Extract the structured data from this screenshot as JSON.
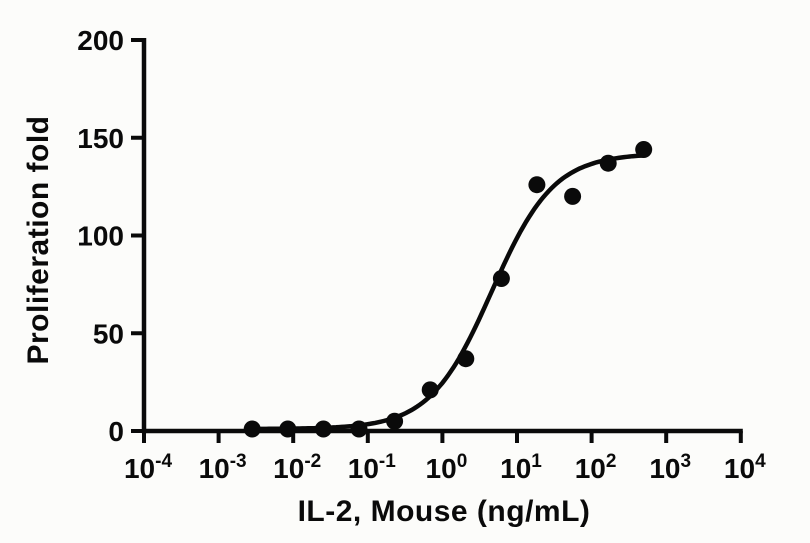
{
  "chart_data": {
    "type": "scatter",
    "title": "",
    "xlabel": "IL-2, Mouse (ng/mL)",
    "ylabel": "Proliferation fold",
    "x_scale": "log10",
    "x_axis_base": "10",
    "x_tick_exponents": [
      -4,
      -3,
      -2,
      -1,
      0,
      1,
      2,
      3,
      4
    ],
    "y_ticks": [
      0,
      50,
      100,
      150,
      200
    ],
    "ylim": [
      0,
      200
    ],
    "xlim_exponents": [
      -4,
      4
    ],
    "grid": false,
    "legend": "none",
    "points": {
      "x_ng_ml": [
        0.00282,
        0.00847,
        0.0254,
        0.0762,
        0.229,
        0.686,
        2.06,
        6.17,
        18.5,
        55.6,
        167,
        500
      ],
      "y_fold": [
        1,
        1,
        1,
        1,
        5,
        21,
        37,
        78,
        126,
        120,
        137,
        144
      ]
    },
    "fit_curve": {
      "model": "4PL-sigmoid",
      "bottom": 1,
      "top": 142,
      "ec50_ng_ml": 4.6,
      "hill": 1.05,
      "x_range_ng_ml": [
        0.00282,
        500
      ]
    },
    "marker": {
      "shape": "circle",
      "radius_px": 8.5,
      "color": "#0a0a0a"
    },
    "line_color": "#0a0a0a",
    "axis_color": "#0a0a0a",
    "background_color": "#fcfcfa"
  }
}
